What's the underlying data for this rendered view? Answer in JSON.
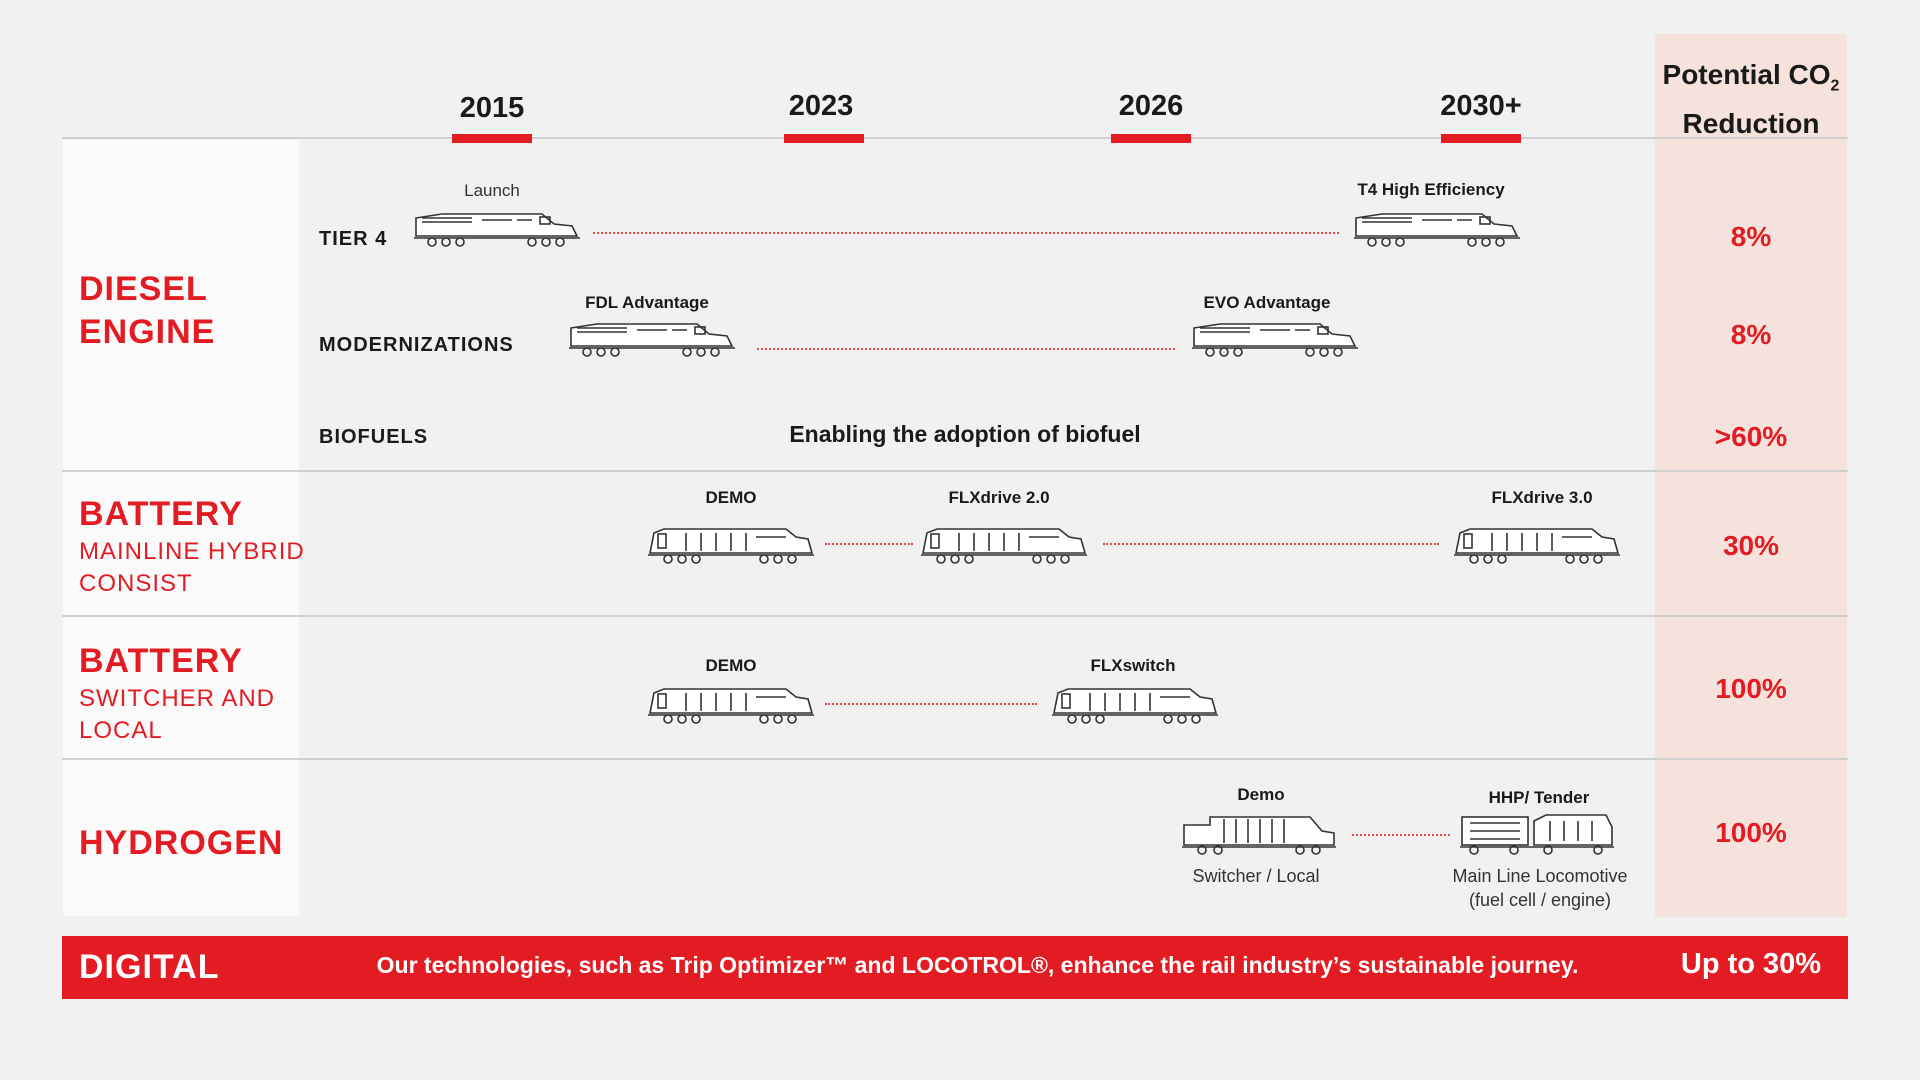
{
  "header": {
    "years": [
      "2015",
      "2023",
      "2026",
      "2030+"
    ],
    "co2_title_line1": "Potential CO",
    "co2_title_sub": "2",
    "co2_title_line2": "Reduction"
  },
  "categories": {
    "diesel": {
      "title_line1": "DIESEL",
      "title_line2": "ENGINE"
    },
    "battery_mainline": {
      "title": "BATTERY",
      "sub_line1": "MAINLINE HYBRID",
      "sub_line2": "CONSIST"
    },
    "battery_switcher": {
      "title": "BATTERY",
      "sub_line1": "SWITCHER AND",
      "sub_line2": "LOCAL"
    },
    "hydrogen": {
      "title": "HYDROGEN"
    }
  },
  "diesel_rows": {
    "tier4": {
      "label": "TIER 4",
      "start": "Launch",
      "end": "T4 High Efficiency",
      "reduction": "8%"
    },
    "modernizations": {
      "label": "MODERNIZATIONS",
      "start": "FDL Advantage",
      "end": "EVO Advantage",
      "reduction": "8%"
    },
    "biofuels": {
      "label": "BIOFUELS",
      "text": "Enabling the adoption of biofuel",
      "reduction": ">60%"
    }
  },
  "battery_mainline": {
    "m1": "DEMO",
    "m2": "FLXdrive 2.0",
    "m3": "FLXdrive 3.0",
    "reduction": "30%"
  },
  "battery_switcher": {
    "m1": "DEMO",
    "m2": "FLXswitch",
    "reduction": "100%"
  },
  "hydrogen": {
    "m1": "Demo",
    "m1_caption": "Switcher / Local",
    "m2": "HHP/ Tender",
    "m2_caption_line1": "Main Line Locomotive",
    "m2_caption_line2": "(fuel cell / engine)",
    "reduction": "100%"
  },
  "digital": {
    "label": "DIGITAL",
    "text": "Our technologies, such as Trip Optimizer™ and LOCOTROL®, enhance the rail industry’s sustainable journey.",
    "reduction": "Up to 30%"
  },
  "colors": {
    "accent": "#e31c23",
    "co2_column": "#f5e2dc",
    "background": "#f1f1f2"
  },
  "icons": [
    "diesel-locomotive-icon",
    "battery-locomotive-icon",
    "hydrogen-switcher-icon",
    "hydrogen-tender-icon"
  ]
}
